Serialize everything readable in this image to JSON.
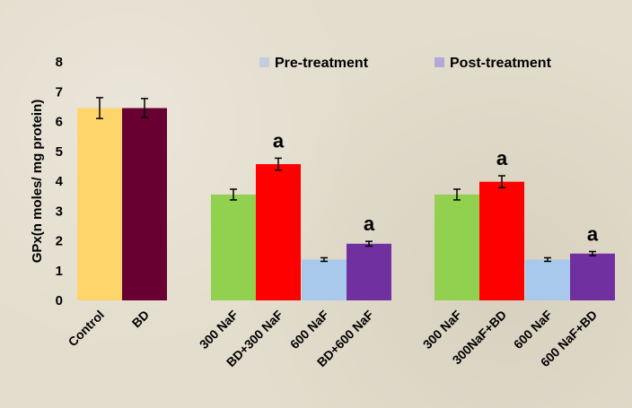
{
  "chart_data": {
    "type": "bar",
    "title": "",
    "ylabel": "GPx(n moles/ mg protein)",
    "xlabel": "",
    "ylim": [
      0,
      8
    ],
    "yticks": [
      "0",
      "1",
      "2",
      "3",
      "4",
      "5",
      "6",
      "7",
      "8"
    ],
    "legend": {
      "position": "top-right",
      "items": [
        {
          "label": "Pre-treatment",
          "color": "#c4cce0"
        },
        {
          "label": "Post-treatment",
          "color": "#b4a8d8"
        }
      ]
    },
    "bars": [
      {
        "label": "Control",
        "value": 6.45,
        "error": 0.35,
        "color": "#fdd56b",
        "annotation": ""
      },
      {
        "label": "BD",
        "value": 6.45,
        "error": 0.32,
        "color": "#680032",
        "annotation": ""
      },
      {
        "label": "300 NaF",
        "value": 3.55,
        "error": 0.18,
        "color": "#92d050",
        "annotation": ""
      },
      {
        "label": "BD+300 NaF",
        "value": 4.57,
        "error": 0.2,
        "color": "#ff0000",
        "annotation": "a"
      },
      {
        "label": "600 NaF",
        "value": 1.37,
        "error": 0.06,
        "color": "#a9c9ec",
        "annotation": ""
      },
      {
        "label": "BD+600 NaF",
        "value": 1.9,
        "error": 0.08,
        "color": "#7030a0",
        "annotation": "a"
      },
      {
        "label": "300 NaF",
        "value": 3.55,
        "error": 0.18,
        "color": "#92d050",
        "annotation": ""
      },
      {
        "label": "300NaF+BD",
        "value": 3.98,
        "error": 0.2,
        "color": "#ff0000",
        "annotation": "a"
      },
      {
        "label": "600 NaF",
        "value": 1.37,
        "error": 0.06,
        "color": "#a9c9ec",
        "annotation": ""
      },
      {
        "label": "600 NaF+BD",
        "value": 1.57,
        "error": 0.07,
        "color": "#7030a0",
        "annotation": "a"
      }
    ]
  }
}
